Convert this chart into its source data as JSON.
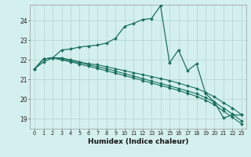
{
  "xlabel": "Humidex (Indice chaleur)",
  "background_color": "#d4f0ee",
  "grid_color": "#b8d8d4",
  "line_color": "#1a7060",
  "xlim": [
    -0.5,
    23.5
  ],
  "ylim": [
    18.5,
    24.8
  ],
  "yticks": [
    19,
    20,
    21,
    22,
    23,
    24
  ],
  "xticks": [
    0,
    1,
    2,
    3,
    4,
    5,
    6,
    7,
    8,
    9,
    10,
    11,
    12,
    13,
    14,
    15,
    16,
    17,
    18,
    19,
    20,
    21,
    22,
    23
  ],
  "series_wavy": [
    21.55,
    21.9,
    22.1,
    22.5,
    22.55,
    22.65,
    22.7,
    22.75,
    22.85,
    23.1,
    23.7,
    23.85,
    24.05,
    24.1,
    24.75,
    21.85,
    22.5,
    21.45,
    21.8,
    20.3,
    19.85,
    19.05,
    19.2,
    19.2
  ],
  "series_linear": [
    [
      21.55,
      22.05,
      22.1,
      22.1,
      22.0,
      21.9,
      21.8,
      21.75,
      21.65,
      21.55,
      21.45,
      21.35,
      21.25,
      21.15,
      21.05,
      20.95,
      20.82,
      20.68,
      20.55,
      20.35,
      20.12,
      19.82,
      19.55,
      19.22
    ],
    [
      21.55,
      22.05,
      22.1,
      22.05,
      21.95,
      21.85,
      21.75,
      21.65,
      21.55,
      21.42,
      21.3,
      21.18,
      21.05,
      20.92,
      20.8,
      20.68,
      20.55,
      20.42,
      20.28,
      20.08,
      19.85,
      19.55,
      19.25,
      18.9
    ],
    [
      21.55,
      22.05,
      22.1,
      22.0,
      21.9,
      21.78,
      21.67,
      21.56,
      21.44,
      21.32,
      21.2,
      21.08,
      20.95,
      20.82,
      20.7,
      20.58,
      20.44,
      20.3,
      20.15,
      19.95,
      19.72,
      19.4,
      19.08,
      18.75
    ]
  ]
}
